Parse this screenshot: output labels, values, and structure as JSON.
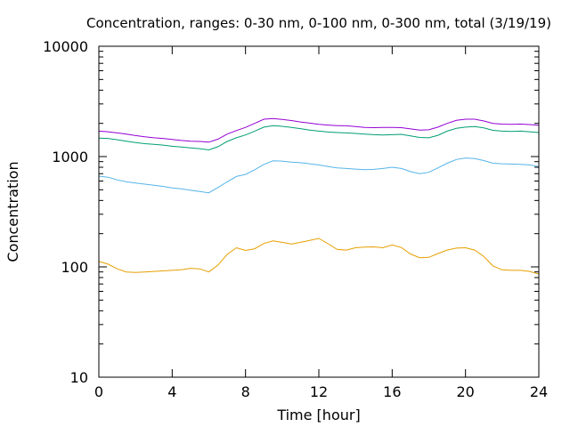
{
  "chart_data": {
    "type": "line",
    "title": "Concentration, ranges: 0-30 nm, 0-100 nm, 0-300 nm, total (3/19/19)",
    "xlabel": "Time [hour]",
    "ylabel": "Concentration",
    "xlim": [
      0,
      24
    ],
    "ylim": [
      10,
      10000
    ],
    "yscale": "log",
    "grid": false,
    "legend": "none",
    "x_ticks": [
      0,
      4,
      8,
      12,
      16,
      20,
      24
    ],
    "x_tick_labels": [
      "0",
      "4",
      "8",
      "12",
      "16",
      "20",
      "24"
    ],
    "y_ticks": [
      10,
      100,
      1000,
      10000
    ],
    "y_tick_labels": [
      "10",
      "100",
      "1000",
      "10000"
    ],
    "series": [
      {
        "color": "#e69f00",
        "x": [
          0,
          0.5,
          1,
          1.5,
          2,
          2.5,
          3,
          3.5,
          4,
          4.5,
          5,
          5.5,
          6,
          6.5,
          7,
          7.5,
          8,
          8.5,
          9,
          9.5,
          10,
          10.5,
          11,
          11.5,
          12,
          12.5,
          13,
          13.5,
          14,
          14.5,
          15,
          15.5,
          16,
          16.5,
          17,
          17.5,
          18,
          18.5,
          19,
          19.5,
          20,
          20.5,
          21,
          21.5,
          22,
          22.5,
          23,
          23.5,
          24
        ],
        "values": [
          112,
          106,
          96,
          90,
          89,
          90,
          91,
          92,
          93,
          94,
          97,
          96,
          90,
          104,
          130,
          149,
          141,
          146,
          163,
          172,
          167,
          161,
          167,
          174,
          181,
          162,
          144,
          142,
          149,
          151,
          152,
          149,
          158,
          150,
          131,
          121,
          122,
          132,
          142,
          148,
          149,
          142,
          124,
          102,
          94,
          93,
          93,
          91,
          86
        ]
      },
      {
        "color": "#56b4e9",
        "x": [
          0,
          0.5,
          1,
          1.5,
          2,
          2.5,
          3,
          3.5,
          4,
          4.5,
          5,
          5.5,
          6,
          6.5,
          7,
          7.5,
          8,
          8.5,
          9,
          9.5,
          10,
          10.5,
          11,
          11.5,
          12,
          12.5,
          13,
          13.5,
          14,
          14.5,
          15,
          15.5,
          16,
          16.5,
          17,
          17.5,
          18,
          18.5,
          19,
          19.5,
          20,
          20.5,
          21,
          21.5,
          22,
          22.5,
          23,
          23.5,
          24
        ],
        "values": [
          665,
          650,
          615,
          590,
          575,
          562,
          550,
          537,
          520,
          510,
          495,
          482,
          470,
          525,
          590,
          660,
          690,
          760,
          850,
          915,
          910,
          890,
          880,
          860,
          840,
          810,
          790,
          780,
          770,
          760,
          765,
          780,
          800,
          780,
          730,
          700,
          720,
          790,
          870,
          940,
          970,
          960,
          920,
          870,
          860,
          855,
          850,
          840,
          810
        ]
      },
      {
        "color": "#009e73",
        "x": [
          0,
          0.5,
          1,
          1.5,
          2,
          2.5,
          3,
          3.5,
          4,
          4.5,
          5,
          5.5,
          6,
          6.5,
          7,
          7.5,
          8,
          8.5,
          9,
          9.5,
          10,
          10.5,
          11,
          11.5,
          12,
          12.5,
          13,
          13.5,
          14,
          14.5,
          15,
          15.5,
          16,
          16.5,
          17,
          17.5,
          18,
          18.5,
          19,
          19.5,
          20,
          20.5,
          21,
          21.5,
          22,
          22.5,
          23,
          23.5,
          24
        ],
        "values": [
          1470,
          1460,
          1420,
          1380,
          1340,
          1310,
          1290,
          1270,
          1240,
          1220,
          1200,
          1180,
          1150,
          1230,
          1370,
          1480,
          1570,
          1700,
          1850,
          1910,
          1880,
          1840,
          1790,
          1740,
          1700,
          1670,
          1650,
          1640,
          1620,
          1600,
          1580,
          1570,
          1580,
          1590,
          1540,
          1490,
          1480,
          1560,
          1700,
          1800,
          1850,
          1870,
          1820,
          1730,
          1700,
          1690,
          1700,
          1680,
          1650
        ]
      },
      {
        "color": "#9400d3",
        "x": [
          0,
          0.5,
          1,
          1.5,
          2,
          2.5,
          3,
          3.5,
          4,
          4.5,
          5,
          5.5,
          6,
          6.5,
          7,
          7.5,
          8,
          8.5,
          9,
          9.5,
          10,
          10.5,
          11,
          11.5,
          12,
          12.5,
          13,
          13.5,
          14,
          14.5,
          15,
          15.5,
          16,
          16.5,
          17,
          17.5,
          18,
          18.5,
          19,
          19.5,
          20,
          20.5,
          21,
          21.5,
          22,
          22.5,
          23,
          23.5,
          24
        ],
        "values": [
          1700,
          1680,
          1640,
          1600,
          1550,
          1510,
          1480,
          1460,
          1430,
          1400,
          1380,
          1370,
          1350,
          1440,
          1600,
          1720,
          1840,
          2000,
          2180,
          2210,
          2170,
          2120,
          2060,
          2010,
          1960,
          1930,
          1910,
          1900,
          1870,
          1840,
          1830,
          1840,
          1840,
          1830,
          1780,
          1740,
          1750,
          1850,
          2000,
          2130,
          2180,
          2180,
          2100,
          2000,
          1970,
          1960,
          1970,
          1950,
          1920
        ]
      }
    ]
  }
}
